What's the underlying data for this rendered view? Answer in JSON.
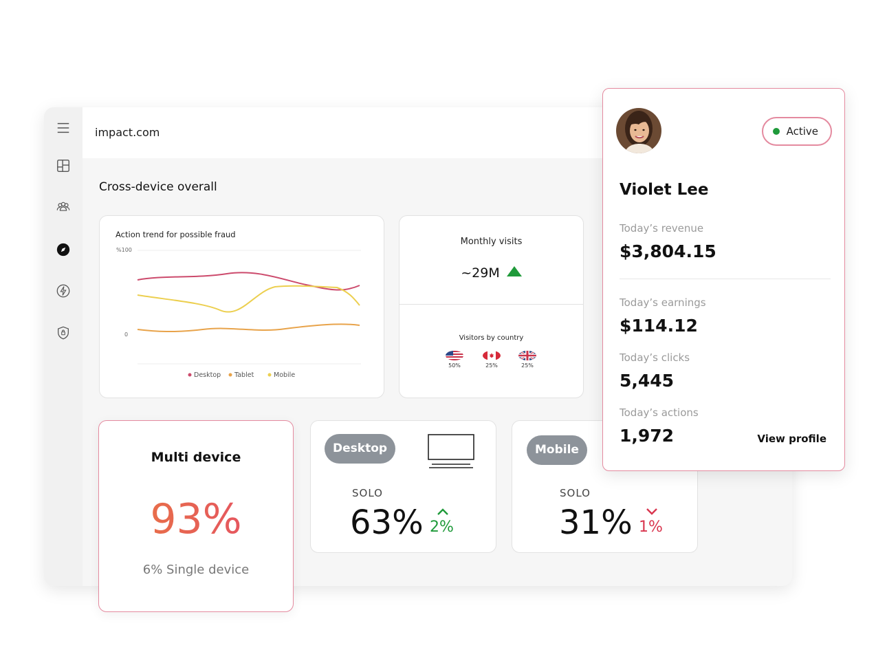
{
  "app": {
    "brand": "impact.com",
    "section_title": "Cross-device overall"
  },
  "sidebar": {
    "items": [
      {
        "icon": "menu-icon"
      },
      {
        "icon": "dashboard-icon"
      },
      {
        "icon": "users-icon"
      },
      {
        "icon": "compass-icon",
        "active": true
      },
      {
        "icon": "lightning-icon"
      },
      {
        "icon": "shield-icon"
      }
    ]
  },
  "fraud_card": {
    "title": "Action trend for possible fraud",
    "legend": [
      "Desktop",
      "Tablet",
      "Mobile"
    ],
    "y_ticks": [
      "%100",
      "0"
    ]
  },
  "chart_data": {
    "type": "line",
    "title": "Action trend for possible fraud",
    "ytick_labels": [
      "%100",
      "0"
    ],
    "series": [
      {
        "name": "Desktop",
        "color": "#cc4a6c"
      },
      {
        "name": "Tablet",
        "color": "#e8a34a"
      },
      {
        "name": "Mobile",
        "color": "#eccf4f"
      }
    ],
    "grid": true,
    "legend_position": "bottom"
  },
  "visits_card": {
    "title": "Monthly visits",
    "value": "~29M",
    "trend": "up",
    "country_title": "Visitors by country",
    "countries": [
      {
        "flag": "us-flag-icon",
        "pct": "50%"
      },
      {
        "flag": "ca-flag-icon",
        "pct": "25%"
      },
      {
        "flag": "uk-flag-icon",
        "pct": "25%"
      }
    ]
  },
  "multi_card": {
    "title": "Multi device",
    "value": "93%",
    "sub": "6% Single device"
  },
  "desktop_card": {
    "pill": "Desktop",
    "solo_label": "SOLO",
    "value": "63%",
    "delta": "2%",
    "trend": "up"
  },
  "mobile_card": {
    "pill": "Mobile",
    "solo_label": "SOLO",
    "value": "31%",
    "delta": "1%",
    "trend": "down"
  },
  "profile": {
    "status": "Active",
    "name": "Violet Lee",
    "revenue_label": "Today’s revenue",
    "revenue": "$3,804.15",
    "earnings_label": "Today’s earnings",
    "earnings": "$114.12",
    "clicks_label": "Today’s clicks",
    "clicks": "5,445",
    "actions_label": "Today’s actions",
    "actions": "1,972",
    "view_profile": "View profile"
  },
  "colors": {
    "accent_pink": "#e48a9f",
    "positive": "#1f9a3a",
    "negative": "#d9364f",
    "pill_gray": "#8d939a"
  }
}
